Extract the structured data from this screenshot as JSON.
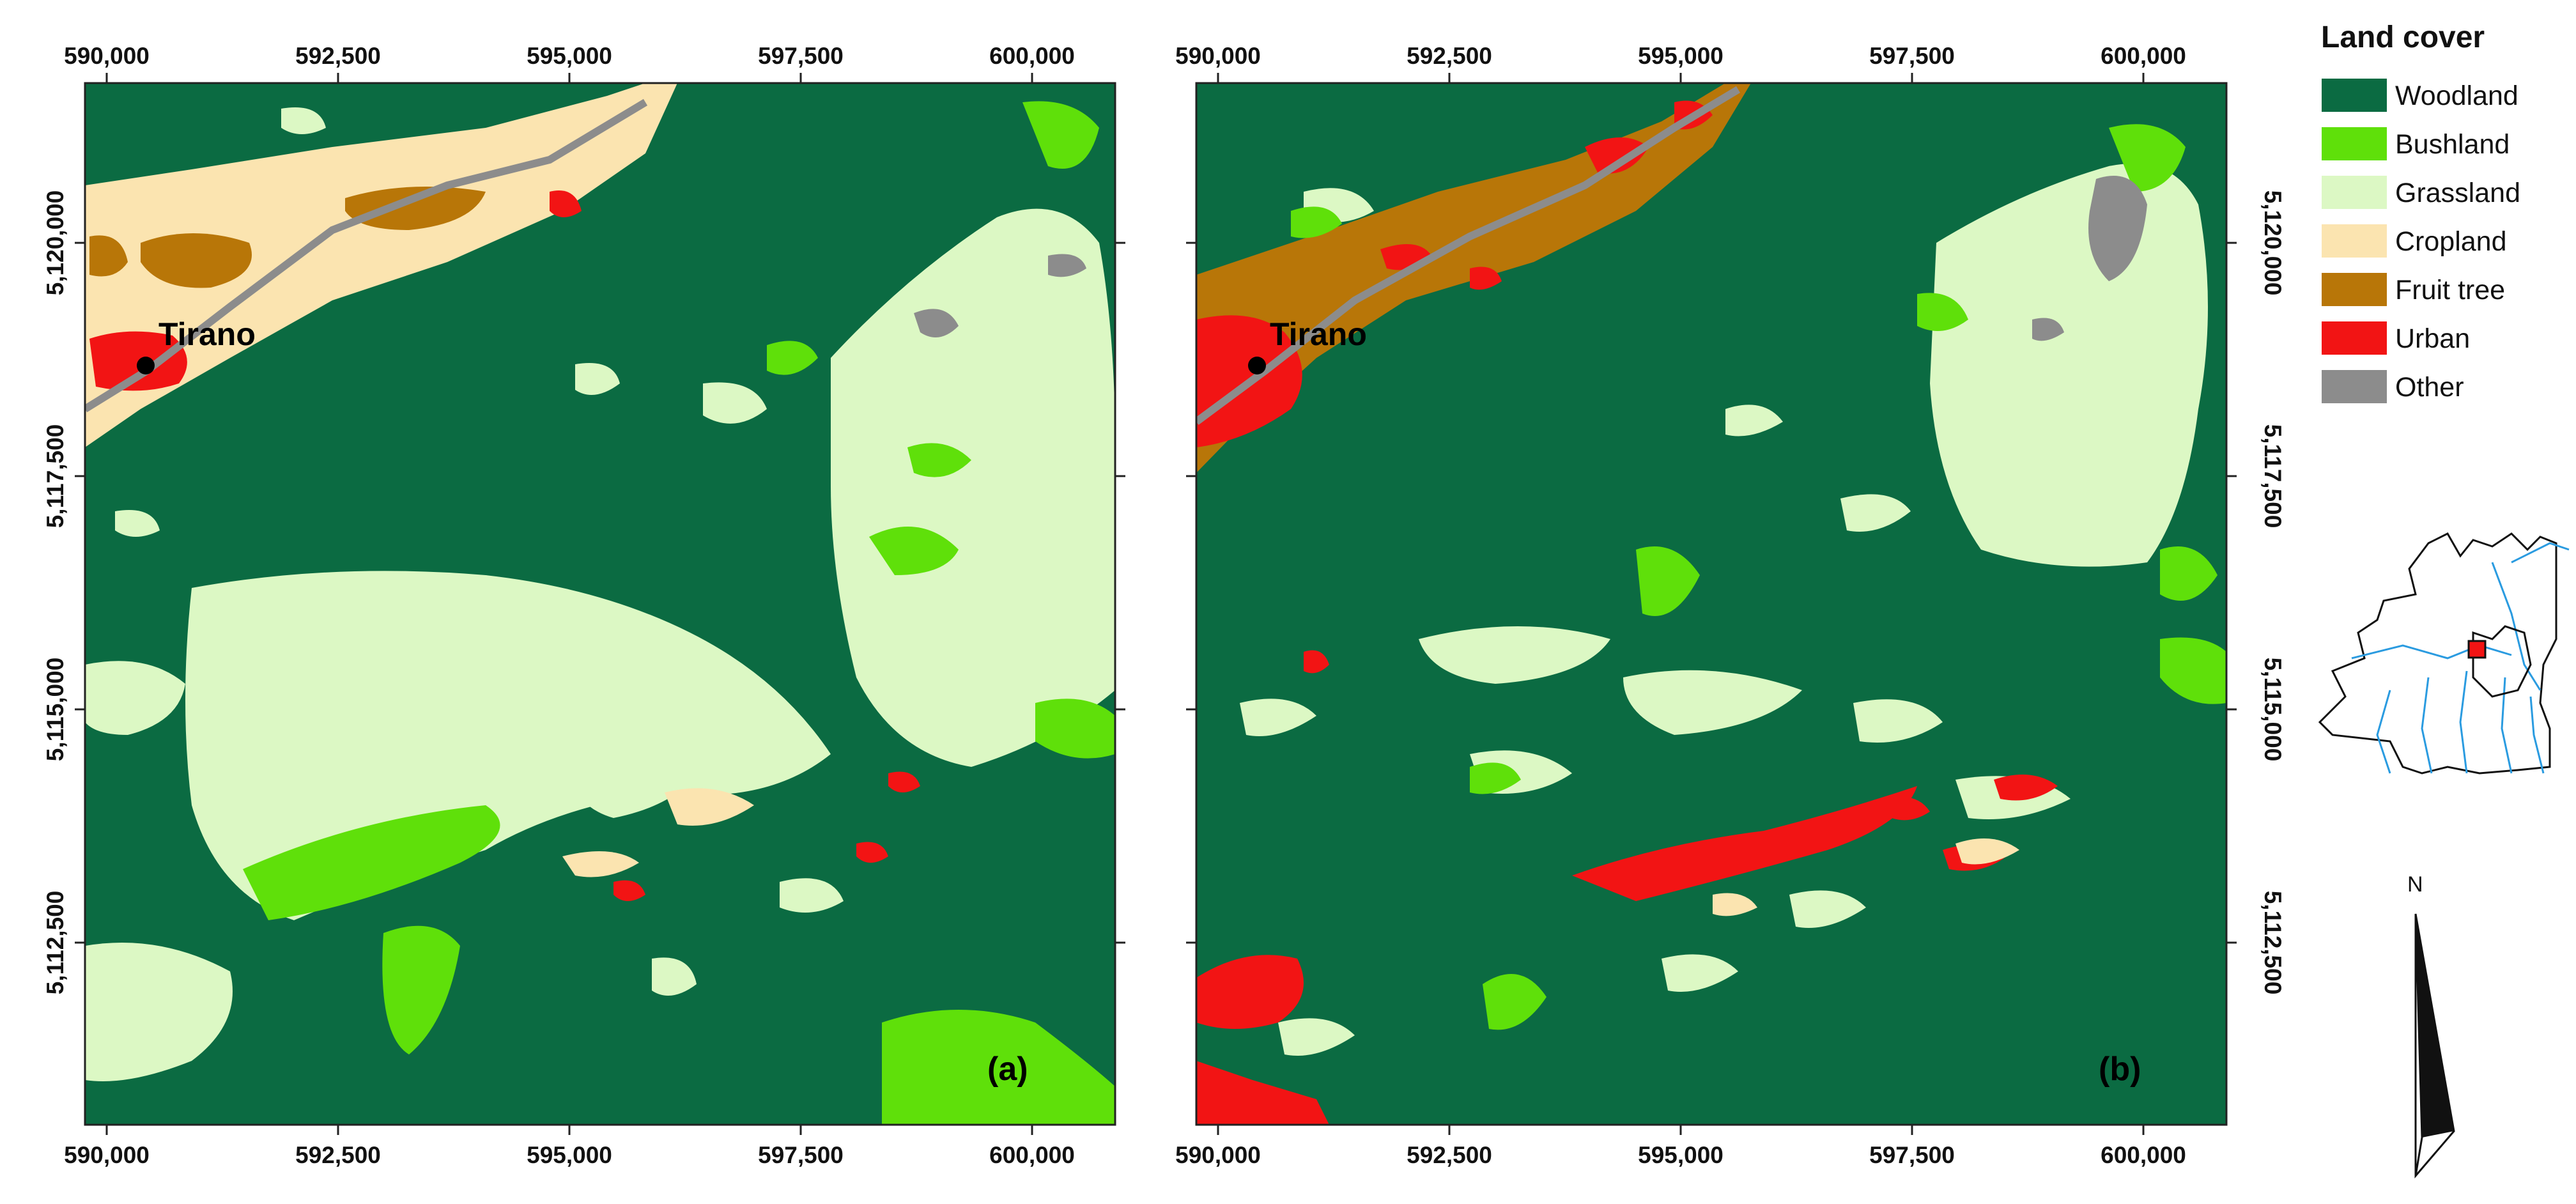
{
  "legend": {
    "title": "Land cover",
    "items": [
      {
        "label": "Woodland",
        "color": "#0b6b42"
      },
      {
        "label": "Bushland",
        "color": "#5fe00a"
      },
      {
        "label": "Grassland",
        "color": "#dcf8c4"
      },
      {
        "label": "Cropland",
        "color": "#fbe4b0"
      },
      {
        "label": "Fruit tree",
        "color": "#b87608"
      },
      {
        "label": "Urban",
        "color": "#f21414"
      },
      {
        "label": "Other",
        "color": "#8c8c8c"
      }
    ]
  },
  "axes": {
    "x_ticks": [
      "590,000",
      "592,500",
      "595,000",
      "597,500",
      "600,000"
    ],
    "y_ticks": [
      "5,120,000",
      "5,117,500",
      "5,115,000",
      "5,112,500"
    ]
  },
  "panels": [
    {
      "id": "a",
      "label": "(a)",
      "town": "Tirano"
    },
    {
      "id": "b",
      "label": "(b)",
      "town": "Tirano"
    }
  ],
  "north_arrow": {
    "label": "N"
  },
  "inset": {
    "icon": "locator-map-icon",
    "marker_color": "#f21414"
  }
}
